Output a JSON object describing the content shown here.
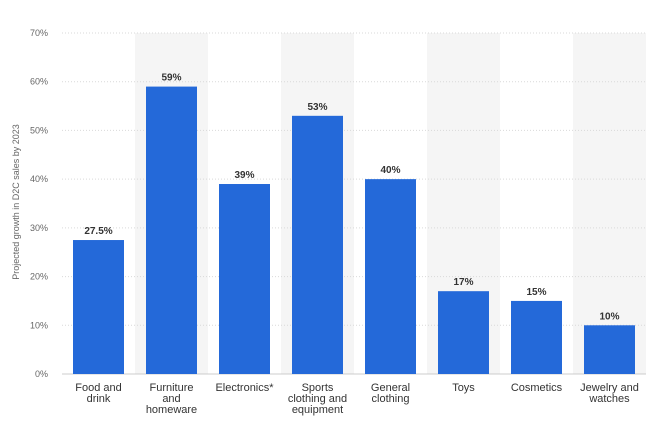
{
  "chart_data": {
    "type": "bar",
    "title": "",
    "xlabel": "",
    "ylabel": "Projected growth in D2C sales by 2023",
    "ylim": [
      0,
      70
    ],
    "yticks": [
      0,
      10,
      20,
      30,
      40,
      50,
      60,
      70
    ],
    "ytick_labels": [
      "0%",
      "10%",
      "20%",
      "30%",
      "40%",
      "50%",
      "60%",
      "70%"
    ],
    "categories": [
      [
        "Food and",
        "drink"
      ],
      [
        "Furniture",
        "and",
        "homeware"
      ],
      [
        "Electronics*"
      ],
      [
        "Sports",
        "clothing and",
        "equipment"
      ],
      [
        "General",
        "clothing"
      ],
      [
        "Toys"
      ],
      [
        "Cosmetics"
      ],
      [
        "Jewelry and",
        "watches"
      ]
    ],
    "values": [
      27.5,
      59,
      39,
      53,
      40,
      17,
      15,
      10
    ],
    "value_labels": [
      "27.5%",
      "59%",
      "39%",
      "53%",
      "40%",
      "17%",
      "15%",
      "10%"
    ],
    "grid": true,
    "legend": "none",
    "bar_color": "#2469d9",
    "band_color": "#f5f5f5"
  }
}
